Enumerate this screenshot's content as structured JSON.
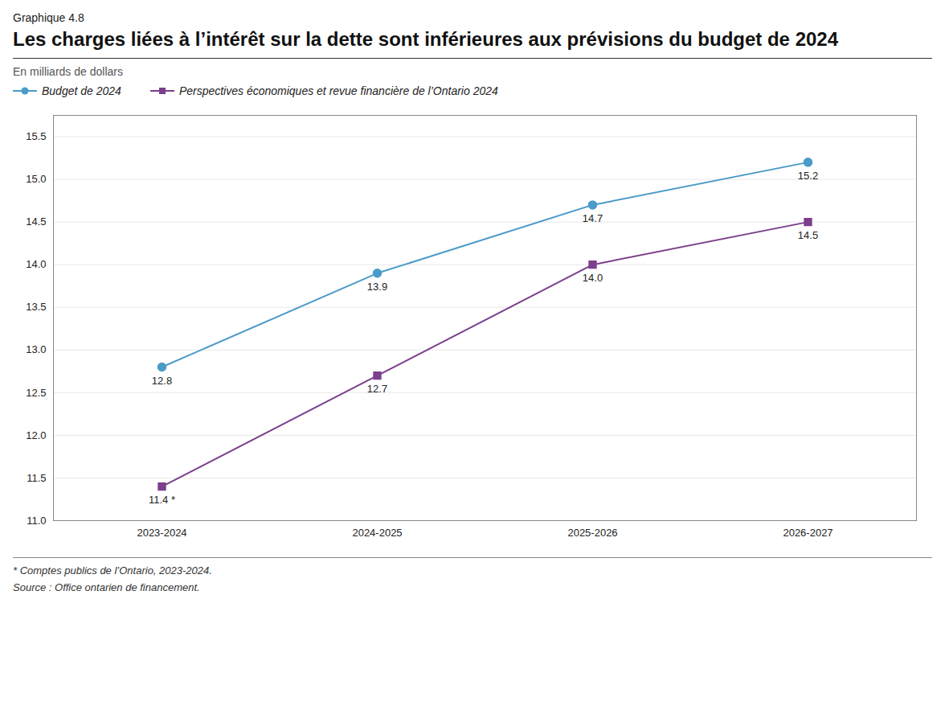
{
  "chart_data": {
    "type": "line",
    "subtitle": "Graphique 4.8",
    "title": "Les charges liées à l’intérêt sur la dette sont inférieures aux prévisions du budget de 2024",
    "y_label": "En milliards de dollars",
    "categories": [
      "2023-2024",
      "2024-2025",
      "2025-2026",
      "2026-2027"
    ],
    "series": [
      {
        "name": "Budget de 2024",
        "color": "#4a9bc9",
        "marker": "circle",
        "line_style": "solid",
        "values": [
          12.8,
          13.9,
          14.7,
          15.2
        ]
      },
      {
        "name": "Perspectives économiques et revue financière de l’Ontario 2024",
        "color": "#7b3f8c",
        "marker": "square",
        "line_style": "solid",
        "values": [
          11.4,
          12.7,
          14.0,
          14.5
        ],
        "value_labels": [
          "11.4 *",
          "12.7",
          "14.0",
          "14.5"
        ]
      }
    ],
    "ylim": [
      11.0,
      15.75
    ],
    "yticks": [
      {
        "value": 11.0,
        "label": "11.0"
      },
      11.5,
      {
        "value": 12.0,
        "label": "12.0"
      },
      12.5,
      {
        "value": 13.0,
        "label": "13.0"
      },
      13.5,
      {
        "value": 14.0,
        "label": "14.0"
      },
      14.5,
      {
        "value": 15.0,
        "label": "15.0"
      },
      15.5
    ],
    "grid": true,
    "legend": "top",
    "data_labels": true,
    "annotations": [
      "* Comptes publics de l’Ontario, 2023-2024.",
      "Source : Office ontarien de financement."
    ]
  }
}
